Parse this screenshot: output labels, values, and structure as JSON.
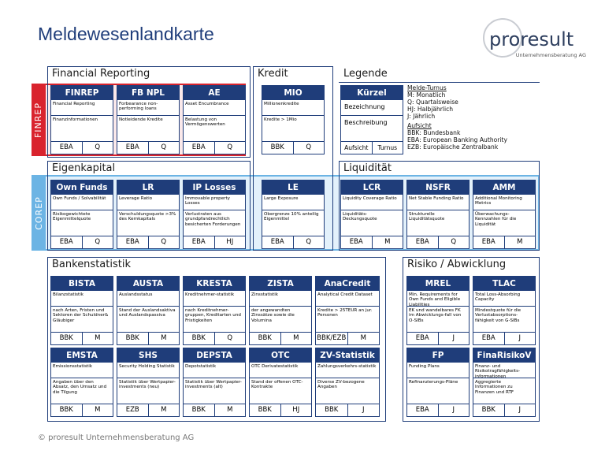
{
  "header": {
    "title": "Meldewesenlandkarte",
    "logo": {
      "name": "proresult",
      "subtitle": "Unternehmensberatung AG"
    }
  },
  "sections": [
    {
      "title": "Financial Reporting"
    },
    {
      "title": "Kredit"
    },
    {
      "title": "Legende"
    },
    {
      "title": "Eigenkapital"
    },
    {
      "title": "Liquidität"
    },
    {
      "title": "Bankenstatistik"
    },
    {
      "title": "Risiko / Abwicklung"
    }
  ],
  "bands": [
    {
      "label": "FINREP"
    },
    {
      "label": "COREP"
    }
  ],
  "cards": [
    {
      "title": "FINREP",
      "desc": "Financial Reporting",
      "detail": "Finanzinformationen",
      "authority": "EBA",
      "frequency": "Q"
    },
    {
      "title": "FB NPL",
      "desc": "Forbearance non-performing loans",
      "detail": "Notleidende Kredite",
      "authority": "EBA",
      "frequency": "Q"
    },
    {
      "title": "AE",
      "desc": "Asset Encumbrance",
      "detail": "Belastung von Vermögenswerten",
      "authority": "EBA",
      "frequency": "Q"
    },
    {
      "title": "MIO",
      "desc": "Millionenkredite",
      "detail": "Kredite > 1Mio",
      "authority": "BBK",
      "frequency": "Q"
    },
    {
      "title": "Own Funds",
      "desc": "Own Funds / Solvabilität",
      "detail": "Risikogewichtete Eigenmittelquote",
      "authority": "EBA",
      "frequency": "Q"
    },
    {
      "title": "LR",
      "desc": "Leverage Ratio",
      "detail": "Verschuldungsquote >3% des Kernkapitals",
      "authority": "EBA",
      "frequency": "Q"
    },
    {
      "title": "IP Losses",
      "desc": "Immovable property Losses",
      "detail": "Verlustraten aus grundpfandrechtlich besicherten Forderungen",
      "authority": "EBA",
      "frequency": "HJ"
    },
    {
      "title": "LE",
      "desc": "Large Exposure",
      "detail": "Obergrenze 10% anteilig Eigenmittel",
      "authority": "EBA",
      "frequency": "Q"
    },
    {
      "title": "LCR",
      "desc": "Liquidity Coverage Ratio",
      "detail": "Liquiditäts-Deckungsquote",
      "authority": "EBA",
      "frequency": "M"
    },
    {
      "title": "NSFR",
      "desc": "Net Stable Funding Ratio",
      "detail": "Strukturelle Liquiditätsquote",
      "authority": "EBA",
      "frequency": "Q"
    },
    {
      "title": "AMM",
      "desc": "Additional Monitoring Metrics",
      "detail": "Überwachungs-Kennzahlen für die Liquidität",
      "authority": "EBA",
      "frequency": "M"
    },
    {
      "title": "BISTA",
      "desc": "Bilanzstatistik",
      "detail": "nach Arten, Fristen und Sektoren der Schuldner& Gläubiger",
      "authority": "BBK",
      "frequency": "M"
    },
    {
      "title": "AUSTA",
      "desc": "Auslandsstatus",
      "detail": "Stand der Auslandsaktiva und Auslandspassiva",
      "authority": "BBK",
      "frequency": "M"
    },
    {
      "title": "KRESTA",
      "desc": "Kreditnehmer-statistik",
      "detail": "nach Kreditnehmer-gruppen, Kreditarten und Fristigkeiten",
      "authority": "BBK",
      "frequency": "Q"
    },
    {
      "title": "ZISTA",
      "desc": "Zinsstatistik",
      "detail": "der angewandten Zinssätze sowie die Volumina",
      "authority": "BBK",
      "frequency": "M"
    },
    {
      "title": "AnaCredit",
      "desc": "Analytical Credit Dataset",
      "detail": "Kredite > 25TEUR an jur. Personen",
      "authority": "BBK/EZB",
      "frequency": "M"
    },
    {
      "title": "EMSTA",
      "desc": "Emissionsstatistik",
      "detail": "Angaben über den Absatz, den Umsatz und die Tilgung",
      "authority": "BBK",
      "frequency": "M"
    },
    {
      "title": "SHS",
      "desc": "Security Holding Statistik",
      "detail": "Statistik über Wertpapier-investments (neu)",
      "authority": "EZB",
      "frequency": "M"
    },
    {
      "title": "DEPSTA",
      "desc": "Depotstatistik",
      "detail": "Statistik über Wertpapier-investments (alt)",
      "authority": "BBK",
      "frequency": "M"
    },
    {
      "title": "OTC",
      "desc": "OTC Derivatestatistik",
      "detail": "Stand der offenen OTC-Kontrakte",
      "authority": "BBK",
      "frequency": "HJ"
    },
    {
      "title": "ZV-Statistik",
      "desc": "Zahlungsverkehrs-statistik",
      "detail": "Diverse ZV-bezogene Angaben",
      "authority": "BBK",
      "frequency": "J"
    },
    {
      "title": "MREL",
      "desc": "Min. Requirements for Own Funds and Eligible Liabilities",
      "detail": "EK und wandelbares FK im Abwicklungs-fall von O-SIBs",
      "authority": "EBA",
      "frequency": "J"
    },
    {
      "title": "TLAC",
      "desc": "Total Loss-Absorbing Capacity",
      "detail": "Mindestquote für die Verlustabsorptions-fähigkeit von G-SIBs",
      "authority": "EBA",
      "frequency": "J"
    },
    {
      "title": "FP",
      "desc": "Funding Plans",
      "detail": "Refinanzierungs-Pläne",
      "authority": "EBA",
      "frequency": "J"
    },
    {
      "title": "FinaRisikoV",
      "desc": "Finanz- und Risikotragfähigkeits-informationen",
      "detail": "Aggregierte Informationen zu Finanzen und RTF",
      "authority": "BBK",
      "frequency": "J"
    }
  ],
  "legend": {
    "card": {
      "title": "Kürzel",
      "desc": "Bezeichnung",
      "detail": "Beschreibung",
      "authority": "Aufsicht",
      "frequency": "Turnus"
    },
    "groups": [
      {
        "heading": "Melde-Turnus",
        "items": [
          "M: Monatlich",
          "Q: Quartalsweise",
          "HJ: Halbjährlich",
          "J: Jährlich"
        ]
      },
      {
        "heading": "Aufsicht",
        "items": [
          "BBK: Bundesbank",
          "EBA: European Banking Authority",
          "EZB: Europäische Zentralbank"
        ]
      }
    ]
  },
  "footer": "© proresult Unternehmensberatung AG"
}
